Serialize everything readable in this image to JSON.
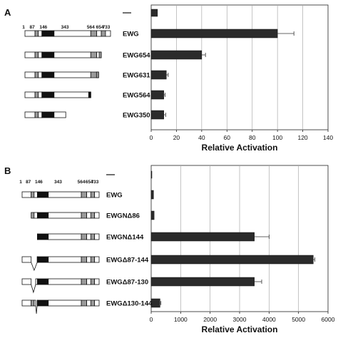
{
  "chart_data": [
    {
      "type": "bar",
      "panel_label": "A",
      "orientation": "horizontal",
      "categories": [
        "",
        "EWG",
        "EWG654",
        "EWG631",
        "EWG564",
        "EWG350"
      ],
      "values": [
        5,
        100,
        40,
        12,
        10,
        10
      ],
      "errors": [
        0,
        13,
        3,
        1.5,
        1,
        1.5
      ],
      "xlabel": "Relative Activation",
      "xlim": [
        0,
        140
      ],
      "xticks": [
        "0",
        "20",
        "40",
        "60",
        "80",
        "100",
        "120",
        "140"
      ],
      "grid": true,
      "construct_position_labels": [
        "1",
        "87",
        "146",
        "343",
        "564",
        "654",
        "733"
      ]
    },
    {
      "type": "bar",
      "panel_label": "B",
      "orientation": "horizontal",
      "categories": [
        "",
        "EWG",
        "EWGNΔ86",
        "EWGNΔ144",
        "EWGΔ87-144",
        "EWGΔ87-130",
        "EWGΔ130-144"
      ],
      "values": [
        20,
        80,
        100,
        3500,
        5500,
        3500,
        300
      ],
      "errors": [
        0,
        0,
        0,
        500,
        50,
        250,
        30
      ],
      "xlabel": "Relative Activation",
      "xlim": [
        0,
        6000
      ],
      "xticks": [
        "0",
        "1000",
        "2000",
        "3000",
        "4000",
        "5000",
        "6000"
      ],
      "grid": true,
      "construct_position_labels": [
        "1",
        "87",
        "146",
        "343",
        "564",
        "654",
        "733"
      ]
    }
  ]
}
